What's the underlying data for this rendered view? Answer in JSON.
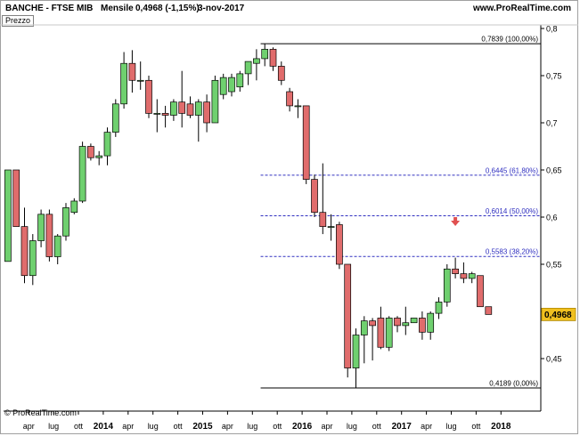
{
  "header": {
    "symbol": "BANCHE - FTSE MIB",
    "period": "Mensile",
    "price": "0,4968 (-1,15%)",
    "date": "3-nov-2017",
    "site": "www.ProRealTime.com"
  },
  "panel_label": "Prezzo",
  "footer": {
    "copyright": "© ProRealTime.com"
  },
  "colors": {
    "up": "#6fd06f",
    "down": "#e06c6c",
    "fib_line": "#3030c0",
    "axis": "#000000",
    "marker": "#e05050",
    "price_tag": "#f0c020"
  },
  "chart_data": {
    "type": "candlestick",
    "title": "BANCHE - FTSE MIB",
    "x_tick_labels": [
      {
        "label": "apr",
        "month": 3
      },
      {
        "label": "lug",
        "month": 6
      },
      {
        "label": "ott",
        "month": 9
      },
      {
        "label": "2014",
        "month": 12,
        "bold": true
      },
      {
        "label": "apr",
        "month": 15
      },
      {
        "label": "lug",
        "month": 18
      },
      {
        "label": "ott",
        "month": 21
      },
      {
        "label": "2015",
        "month": 24,
        "bold": true
      },
      {
        "label": "apr",
        "month": 27
      },
      {
        "label": "lug",
        "month": 30
      },
      {
        "label": "ott",
        "month": 33
      },
      {
        "label": "2016",
        "month": 36,
        "bold": true
      },
      {
        "label": "apr",
        "month": 39
      },
      {
        "label": "lug",
        "month": 42
      },
      {
        "label": "ott",
        "month": 45
      },
      {
        "label": "2017",
        "month": 48,
        "bold": true
      },
      {
        "label": "apr",
        "month": 51
      },
      {
        "label": "lug",
        "month": 54
      },
      {
        "label": "ott",
        "month": 57
      },
      {
        "label": "2018",
        "month": 60,
        "bold": true
      }
    ],
    "y_ticks": [
      {
        "value": 0.45,
        "label": "0,45"
      },
      {
        "value": 0.5,
        "label": "0,5"
      },
      {
        "value": 0.55,
        "label": "0,55"
      },
      {
        "value": 0.6,
        "label": "0,6"
      },
      {
        "value": 0.65,
        "label": "0,65"
      },
      {
        "value": 0.7,
        "label": "0,7"
      },
      {
        "value": 0.75,
        "label": "0,75"
      },
      {
        "value": 0.8,
        "label": "0,8"
      }
    ],
    "y_range": [
      0.4,
      0.81
    ],
    "x_range": [
      0,
      61
    ],
    "last_price": {
      "value": 0.4968,
      "label": "0,4968"
    },
    "fib_levels": [
      {
        "value": 0.7839,
        "label": "0,7839 (100,00%)",
        "style": "solid"
      },
      {
        "value": 0.6445,
        "label": "0,6445 (61,80%)",
        "style": "dashed"
      },
      {
        "value": 0.6014,
        "label": "0,6014 (50,00%)",
        "style": "dashed"
      },
      {
        "value": 0.5583,
        "label": "0,5583 (38,20%)",
        "style": "dashed"
      },
      {
        "value": 0.4189,
        "label": "0,4189 (0,00%)",
        "style": "solid"
      }
    ],
    "fib_start_month": 30.5,
    "marker_month": 54,
    "candles": [
      {
        "m": 0,
        "o": 0.553,
        "h": 0.65,
        "l": 0.553,
        "c": 0.65
      },
      {
        "m": 1,
        "o": 0.65,
        "h": 0.65,
        "l": 0.59,
        "c": 0.59
      },
      {
        "m": 2,
        "o": 0.59,
        "h": 0.61,
        "l": 0.53,
        "c": 0.538
      },
      {
        "m": 3,
        "o": 0.538,
        "h": 0.582,
        "l": 0.528,
        "c": 0.575
      },
      {
        "m": 4,
        "o": 0.575,
        "h": 0.608,
        "l": 0.568,
        "c": 0.603
      },
      {
        "m": 5,
        "o": 0.603,
        "h": 0.608,
        "l": 0.553,
        "c": 0.558
      },
      {
        "m": 6,
        "o": 0.558,
        "h": 0.582,
        "l": 0.55,
        "c": 0.58
      },
      {
        "m": 7,
        "o": 0.58,
        "h": 0.615,
        "l": 0.575,
        "c": 0.61
      },
      {
        "m": 8,
        "o": 0.605,
        "h": 0.62,
        "l": 0.603,
        "c": 0.617
      },
      {
        "m": 9,
        "o": 0.617,
        "h": 0.68,
        "l": 0.615,
        "c": 0.675
      },
      {
        "m": 10,
        "o": 0.675,
        "h": 0.678,
        "l": 0.66,
        "c": 0.663
      },
      {
        "m": 11,
        "o": 0.663,
        "h": 0.67,
        "l": 0.655,
        "c": 0.665
      },
      {
        "m": 12,
        "o": 0.665,
        "h": 0.695,
        "l": 0.655,
        "c": 0.69
      },
      {
        "m": 13,
        "o": 0.69,
        "h": 0.725,
        "l": 0.685,
        "c": 0.72
      },
      {
        "m": 14,
        "o": 0.72,
        "h": 0.775,
        "l": 0.715,
        "c": 0.763
      },
      {
        "m": 15,
        "o": 0.763,
        "h": 0.777,
        "l": 0.732,
        "c": 0.745
      },
      {
        "m": 16,
        "o": 0.745,
        "h": 0.765,
        "l": 0.735,
        "c": 0.745
      },
      {
        "m": 17,
        "o": 0.745,
        "h": 0.75,
        "l": 0.705,
        "c": 0.71
      },
      {
        "m": 18,
        "o": 0.71,
        "h": 0.725,
        "l": 0.69,
        "c": 0.71
      },
      {
        "m": 19,
        "o": 0.71,
        "h": 0.718,
        "l": 0.695,
        "c": 0.708
      },
      {
        "m": 20,
        "o": 0.708,
        "h": 0.725,
        "l": 0.702,
        "c": 0.722
      },
      {
        "m": 21,
        "o": 0.722,
        "h": 0.755,
        "l": 0.695,
        "c": 0.71
      },
      {
        "m": 22,
        "o": 0.72,
        "h": 0.728,
        "l": 0.705,
        "c": 0.708
      },
      {
        "m": 23,
        "o": 0.708,
        "h": 0.725,
        "l": 0.68,
        "c": 0.722
      },
      {
        "m": 24,
        "o": 0.722,
        "h": 0.73,
        "l": 0.69,
        "c": 0.7
      },
      {
        "m": 25,
        "o": 0.7,
        "h": 0.75,
        "l": 0.7,
        "c": 0.745
      },
      {
        "m": 26,
        "o": 0.73,
        "h": 0.752,
        "l": 0.725,
        "c": 0.748
      },
      {
        "m": 27,
        "o": 0.733,
        "h": 0.752,
        "l": 0.728,
        "c": 0.748
      },
      {
        "m": 28,
        "o": 0.738,
        "h": 0.755,
        "l": 0.733,
        "c": 0.752
      },
      {
        "m": 29,
        "o": 0.752,
        "h": 0.765,
        "l": 0.74,
        "c": 0.765
      },
      {
        "m": 30,
        "o": 0.763,
        "h": 0.778,
        "l": 0.745,
        "c": 0.768
      },
      {
        "m": 31,
        "o": 0.768,
        "h": 0.7839,
        "l": 0.76,
        "c": 0.778
      },
      {
        "m": 32,
        "o": 0.778,
        "h": 0.78,
        "l": 0.755,
        "c": 0.76
      },
      {
        "m": 33,
        "o": 0.76,
        "h": 0.765,
        "l": 0.74,
        "c": 0.745
      },
      {
        "m": 34,
        "o": 0.733,
        "h": 0.737,
        "l": 0.712,
        "c": 0.718
      },
      {
        "m": 35,
        "o": 0.718,
        "h": 0.725,
        "l": 0.705,
        "c": 0.718
      },
      {
        "m": 36,
        "o": 0.718,
        "h": 0.718,
        "l": 0.635,
        "c": 0.64
      },
      {
        "m": 37,
        "o": 0.64,
        "h": 0.645,
        "l": 0.6,
        "c": 0.605
      },
      {
        "m": 38,
        "o": 0.605,
        "h": 0.657,
        "l": 0.582,
        "c": 0.59
      },
      {
        "m": 39,
        "o": 0.59,
        "h": 0.603,
        "l": 0.575,
        "c": 0.59
      },
      {
        "m": 40,
        "o": 0.592,
        "h": 0.595,
        "l": 0.545,
        "c": 0.55
      },
      {
        "m": 41,
        "o": 0.55,
        "h": 0.55,
        "l": 0.43,
        "c": 0.44
      },
      {
        "m": 42,
        "o": 0.44,
        "h": 0.482,
        "l": 0.4189,
        "c": 0.475
      },
      {
        "m": 43,
        "o": 0.475,
        "h": 0.495,
        "l": 0.445,
        "c": 0.49
      },
      {
        "m": 44,
        "o": 0.49,
        "h": 0.493,
        "l": 0.448,
        "c": 0.485
      },
      {
        "m": 45,
        "o": 0.493,
        "h": 0.505,
        "l": 0.46,
        "c": 0.462
      },
      {
        "m": 46,
        "o": 0.462,
        "h": 0.495,
        "l": 0.458,
        "c": 0.493
      },
      {
        "m": 47,
        "o": 0.493,
        "h": 0.495,
        "l": 0.478,
        "c": 0.485
      },
      {
        "m": 48,
        "o": 0.485,
        "h": 0.505,
        "l": 0.475,
        "c": 0.488
      },
      {
        "m": 49,
        "o": 0.488,
        "h": 0.493,
        "l": 0.488,
        "c": 0.493
      },
      {
        "m": 50,
        "o": 0.493,
        "h": 0.5,
        "l": 0.47,
        "c": 0.478
      },
      {
        "m": 51,
        "o": 0.478,
        "h": 0.5,
        "l": 0.47,
        "c": 0.498
      },
      {
        "m": 52,
        "o": 0.498,
        "h": 0.515,
        "l": 0.492,
        "c": 0.51
      },
      {
        "m": 53,
        "o": 0.51,
        "h": 0.55,
        "l": 0.505,
        "c": 0.545
      },
      {
        "m": 54,
        "o": 0.545,
        "h": 0.557,
        "l": 0.535,
        "c": 0.54
      },
      {
        "m": 55,
        "o": 0.54,
        "h": 0.552,
        "l": 0.53,
        "c": 0.535
      },
      {
        "m": 56,
        "o": 0.535,
        "h": 0.542,
        "l": 0.53,
        "c": 0.54
      },
      {
        "m": 57,
        "o": 0.538,
        "h": 0.538,
        "l": 0.505,
        "c": 0.505
      },
      {
        "m": 58,
        "o": 0.505,
        "h": 0.505,
        "l": 0.4968,
        "c": 0.4968
      }
    ]
  }
}
